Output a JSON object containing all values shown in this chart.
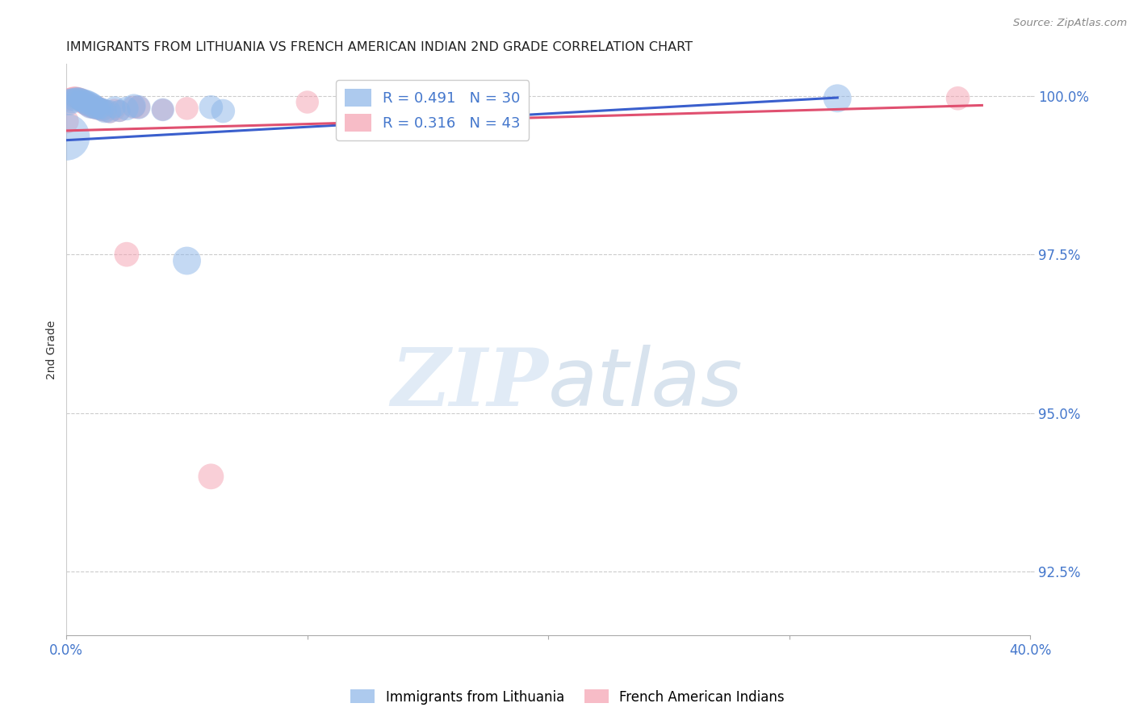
{
  "title": "IMMIGRANTS FROM LITHUANIA VS FRENCH AMERICAN INDIAN 2ND GRADE CORRELATION CHART",
  "source": "Source: ZipAtlas.com",
  "ylabel": "2nd Grade",
  "xlim": [
    0.0,
    0.4
  ],
  "ylim": [
    0.915,
    1.005
  ],
  "ytick_labels": [
    "92.5%",
    "95.0%",
    "97.5%",
    "100.0%"
  ],
  "ytick_vals": [
    0.925,
    0.95,
    0.975,
    1.0
  ],
  "watermark_zip": "ZIP",
  "watermark_atlas": "atlas",
  "blue_color": "#8ab4e8",
  "pink_color": "#f4a0b0",
  "blue_line_color": "#3a5fcd",
  "pink_line_color": "#e05070",
  "axis_label_color": "#4477cc",
  "legend_r_color": "#4477cc",
  "blue_scatter": {
    "x": [
      0.0,
      0.001,
      0.002,
      0.003,
      0.004,
      0.005,
      0.006,
      0.007,
      0.008,
      0.009,
      0.01,
      0.011,
      0.012,
      0.013,
      0.014,
      0.015,
      0.016,
      0.018,
      0.02,
      0.022,
      0.025,
      0.028,
      0.03,
      0.04,
      0.05,
      0.06,
      0.065,
      0.32
    ],
    "y": [
      0.9935,
      0.999,
      0.9992,
      0.9994,
      0.9996,
      0.9996,
      0.9994,
      0.9992,
      0.999,
      0.9988,
      0.9985,
      0.9984,
      0.9982,
      0.998,
      0.998,
      0.9978,
      0.9976,
      0.9975,
      0.9982,
      0.9976,
      0.998,
      0.9984,
      0.9982,
      0.9978,
      0.974,
      0.9982,
      0.9976,
      0.9996
    ],
    "sizes": [
      250,
      80,
      70,
      60,
      55,
      55,
      60,
      65,
      70,
      75,
      80,
      70,
      65,
      60,
      55,
      60,
      65,
      60,
      55,
      55,
      65,
      65,
      65,
      60,
      90,
      65,
      65,
      90
    ]
  },
  "pink_scatter": {
    "x": [
      0.0,
      0.001,
      0.002,
      0.003,
      0.004,
      0.005,
      0.006,
      0.007,
      0.008,
      0.009,
      0.01,
      0.011,
      0.012,
      0.013,
      0.014,
      0.015,
      0.016,
      0.018,
      0.02,
      0.022,
      0.025,
      0.028,
      0.03,
      0.04,
      0.05,
      0.06,
      0.1,
      0.37
    ],
    "y": [
      0.996,
      0.9994,
      0.9996,
      0.9998,
      0.9998,
      0.9996,
      0.9994,
      0.999,
      0.9988,
      0.9986,
      0.9984,
      0.9982,
      0.998,
      0.9982,
      0.9978,
      0.9978,
      0.9976,
      0.9974,
      0.9978,
      0.9976,
      0.975,
      0.9982,
      0.9982,
      0.9978,
      0.998,
      0.94,
      0.999,
      0.9996
    ],
    "sizes": [
      70,
      60,
      55,
      50,
      50,
      55,
      60,
      65,
      65,
      65,
      65,
      60,
      55,
      55,
      55,
      55,
      55,
      55,
      55,
      55,
      70,
      60,
      60,
      55,
      60,
      75,
      60,
      65
    ]
  },
  "blue_line": {
    "x": [
      0.0,
      0.32
    ],
    "y": [
      0.993,
      0.9997
    ]
  },
  "pink_line": {
    "x": [
      0.0,
      0.38
    ],
    "y": [
      0.9945,
      0.9985
    ]
  }
}
